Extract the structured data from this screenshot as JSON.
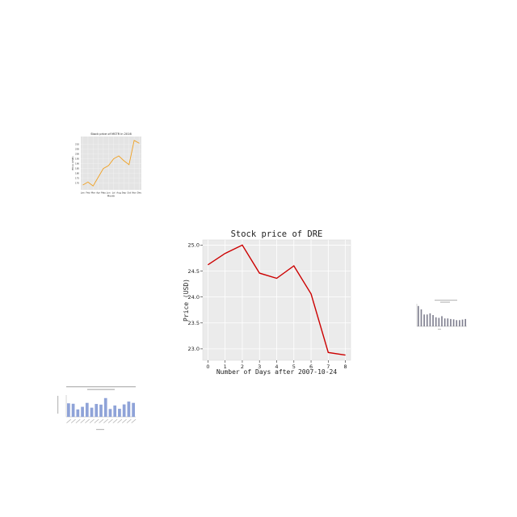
{
  "chart_data": [
    {
      "id": "main",
      "type": "line",
      "title": "Stock price of DRE",
      "xlabel": "Number of Days after 2007-10-24",
      "ylabel": "Price (USD)",
      "x": [
        0,
        1,
        2,
        3,
        4,
        5,
        6,
        7,
        8
      ],
      "series": [
        {
          "values": [
            24.62,
            24.84,
            25.0,
            24.46,
            24.36,
            24.6,
            24.06,
            22.93,
            22.88
          ],
          "color": "#cc0000"
        }
      ],
      "xlim": [
        -0.3,
        8.3
      ],
      "ylim": [
        22.78,
        25.1
      ],
      "xticks": [
        "0",
        "1",
        "2",
        "3",
        "4",
        "5",
        "6",
        "7",
        "8"
      ],
      "yticks": [
        "25.0",
        "24.5",
        "24.0",
        "23.5",
        "23.0"
      ],
      "grid": true,
      "background": "#ebebeb"
    },
    {
      "id": "small-line",
      "type": "line",
      "title": "Stock price of MSTR in 2016",
      "xlabel": "Month",
      "ylabel": "Price (USD)",
      "x": [
        "Jan",
        "Feb",
        "Mar",
        "Apr",
        "May",
        "Jun",
        "Jul",
        "Aug",
        "Sep",
        "Oct",
        "Nov",
        "Dec"
      ],
      "series": [
        {
          "values": [
            168,
            171,
            167,
            176,
            185,
            188,
            195,
            198,
            193,
            189,
            214,
            211
          ],
          "color": "#f0a020"
        }
      ],
      "ylim": [
        163,
        218
      ],
      "yticks": [
        "210",
        "205",
        "200",
        "195",
        "190",
        "185",
        "180",
        "175",
        "170"
      ],
      "grid": true,
      "background": "#e4e4e4"
    },
    {
      "id": "small-bar-right",
      "type": "bar",
      "title": "",
      "values": [
        1.8,
        1.5,
        1.05,
        1.05,
        1.15,
        1.0,
        0.8,
        0.75,
        0.9,
        0.7,
        0.7,
        0.65,
        0.62,
        0.55,
        0.55,
        0.6,
        0.65
      ],
      "ylim": [
        0,
        2
      ],
      "color": "#7f7f8f"
    },
    {
      "id": "small-bar-left",
      "type": "bar",
      "title": "",
      "values": [
        6.2,
        6.0,
        3.4,
        4.6,
        6.4,
        4.2,
        5.9,
        5.6,
        8.6,
        3.6,
        5.2,
        3.7,
        5.7,
        7.0,
        6.4
      ],
      "ylim": [
        0,
        10
      ],
      "color": "#8fa3d8"
    }
  ]
}
